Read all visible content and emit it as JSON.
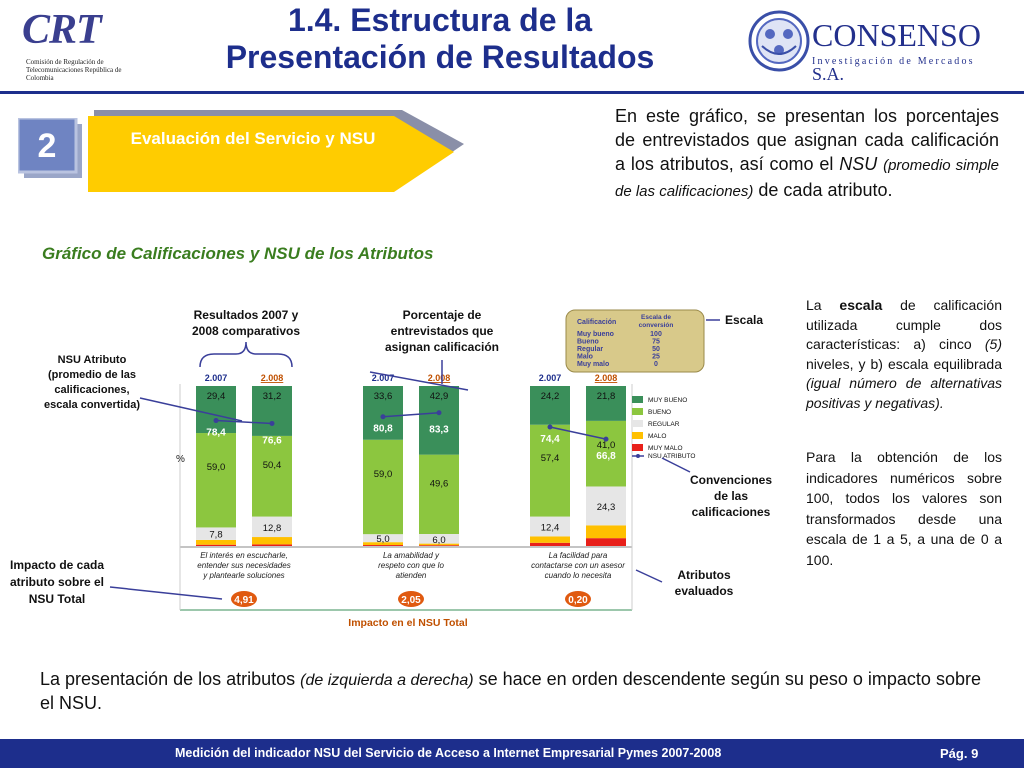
{
  "header": {
    "title_line1": "1.4. Estructura de la",
    "title_line2": "Presentación de Resultados",
    "left_logo": {
      "mark": "CRT",
      "subtitle": "Comisión de Regulación de Telecomunicaciones República de Colombia"
    },
    "right_logo": {
      "name": "CONSENSO",
      "suffix": "S.A.",
      "tagline": "Investigación de Mercados"
    }
  },
  "section": {
    "number": "2",
    "label": "Evaluación del Servicio y NSU"
  },
  "intro": {
    "part1": "En este gráfico, se presentan los porcentajes de entrevistados que asignan cada calificación a los atributos, así como el ",
    "nsu": "NSU",
    "paren": "(promedio simple de las calificaciones)",
    "part2": " de cada atributo."
  },
  "chart_heading": "Gráfico de Calificaciones y NSU de los Atributos",
  "callouts": {
    "resultados": [
      "Resultados 2007 y",
      "2008 comparativos"
    ],
    "porcentaje": [
      "Porcentaje de",
      "entrevistados que",
      "asignan calificación"
    ],
    "escala": "Escala",
    "nsu_atributo": [
      "NSU Atributo",
      "(promedio de las",
      "calificaciones,",
      "escala convertida)"
    ],
    "convenciones": [
      "Convenciones",
      "de las",
      "calificaciones"
    ],
    "impacto": [
      "Impacto de cada",
      "atributo sobre el",
      "NSU Total"
    ],
    "atributos": [
      "Atributos",
      "evaluados"
    ]
  },
  "scale_table": {
    "headers": [
      "Calificación",
      "Escala de",
      "conversión"
    ],
    "rows": [
      [
        "Muy bueno",
        "100"
      ],
      [
        "Bueno",
        "75"
      ],
      [
        "Regular",
        "50"
      ],
      [
        "Malo",
        "25"
      ],
      [
        "Muy malo",
        "0"
      ]
    ]
  },
  "chart_data": {
    "type": "bar",
    "stacked": true,
    "percent_axis_label": "%",
    "year_labels": [
      "2.007",
      "2.008"
    ],
    "groups": [
      {
        "attribute": [
          "El interés en escucharle,",
          "entender sus necesidades",
          "y plantearle soluciones"
        ],
        "impact": "4,91",
        "bars": [
          {
            "year": "2.007",
            "muy_bueno": 29.4,
            "bueno": 59.0,
            "regular": 7.8,
            "malo": 3.0,
            "muy_malo": 0.8,
            "nsu": 78.4,
            "labels": {
              "muy_bueno": "29,4",
              "bueno": "59,0",
              "regular": "7,8",
              "nsu": "78,4"
            }
          },
          {
            "year": "2.008",
            "muy_bueno": 31.2,
            "bueno": 50.4,
            "regular": 12.8,
            "malo": 4.6,
            "muy_malo": 1.0,
            "nsu": 76.6,
            "labels": {
              "muy_bueno": "31,2",
              "bueno": "50,4",
              "regular": "12,8",
              "nsu": "76,6"
            }
          }
        ]
      },
      {
        "attribute": [
          "La amabilidad y",
          "respeto con que lo",
          "atienden"
        ],
        "impact": "2,05",
        "bars": [
          {
            "year": "2.007",
            "muy_bueno": 33.6,
            "bueno": 59.0,
            "regular": 5.0,
            "malo": 1.8,
            "muy_malo": 0.6,
            "nsu": 80.8,
            "labels": {
              "muy_bueno": "33,6",
              "bueno": "59,0",
              "regular": "5,0",
              "nsu": "80,8"
            }
          },
          {
            "year": "2.008",
            "muy_bueno": 42.9,
            "bueno": 49.6,
            "regular": 6.0,
            "malo": 1.0,
            "muy_malo": 0.5,
            "nsu": 83.3,
            "labels": {
              "muy_bueno": "42,9",
              "bueno": "49,6",
              "regular": "6,0",
              "nsu": "83,3"
            }
          }
        ]
      },
      {
        "attribute": [
          "La facilidad para",
          "contactarse con un asesor",
          "cuando lo necesita"
        ],
        "impact": "0,20",
        "bars": [
          {
            "year": "2.007",
            "muy_bueno": 24.2,
            "bueno": 57.4,
            "regular": 12.4,
            "malo": 4.0,
            "muy_malo": 2.0,
            "nsu": 74.4,
            "labels": {
              "muy_bueno": "24,2",
              "bueno": "57,4",
              "regular": "12,4",
              "nsu": "74,4"
            }
          },
          {
            "year": "2.008",
            "muy_bueno": 21.8,
            "bueno": 41.0,
            "regular": 24.3,
            "malo": 8.0,
            "muy_malo": 4.9,
            "nsu": 66.8,
            "labels": {
              "muy_bueno": "21,8",
              "bueno": "41,0",
              "regular": "24,3",
              "nsu": "66,8"
            }
          }
        ]
      }
    ],
    "legend": [
      "MUY BUENO",
      "BUENO",
      "REGULAR",
      "MALO",
      "MUY MALO",
      "NSU ATRIBUTO"
    ],
    "colors": {
      "muy_bueno": "#3a8f5a",
      "bueno": "#8cc63f",
      "regular": "#e6e6e6",
      "malo": "#ffc000",
      "muy_malo": "#e8201a",
      "nsu": "#3a3f9a"
    },
    "footer_label": "Impacto en el NSU Total"
  },
  "scale_paragraph": {
    "p1": "La ",
    "escala": "escala",
    "p2": " de calificación utilizada cumple dos características: a) cinco ",
    "five": "(5)",
    "p3": " niveles, y b) escala equilibrada ",
    "italic": "(igual número de alternativas positivas y negativas)."
  },
  "transform_paragraph": "Para la obtención de los indicadores numéricos sobre 100, todos los valores son transformados desde una escala de 1 a 5, a una de 0 a 100.",
  "order_note": {
    "p1": "La presentación de los atributos ",
    "italic": "(de izquierda a derecha)",
    "p2": " se hace en orden descendente según su peso o impacto sobre el NSU."
  },
  "footer": {
    "text": "Medición del  indicador NSU del Servicio de Acceso a Internet Empresarial Pymes 2007-2008",
    "page": "Pág. 9"
  }
}
